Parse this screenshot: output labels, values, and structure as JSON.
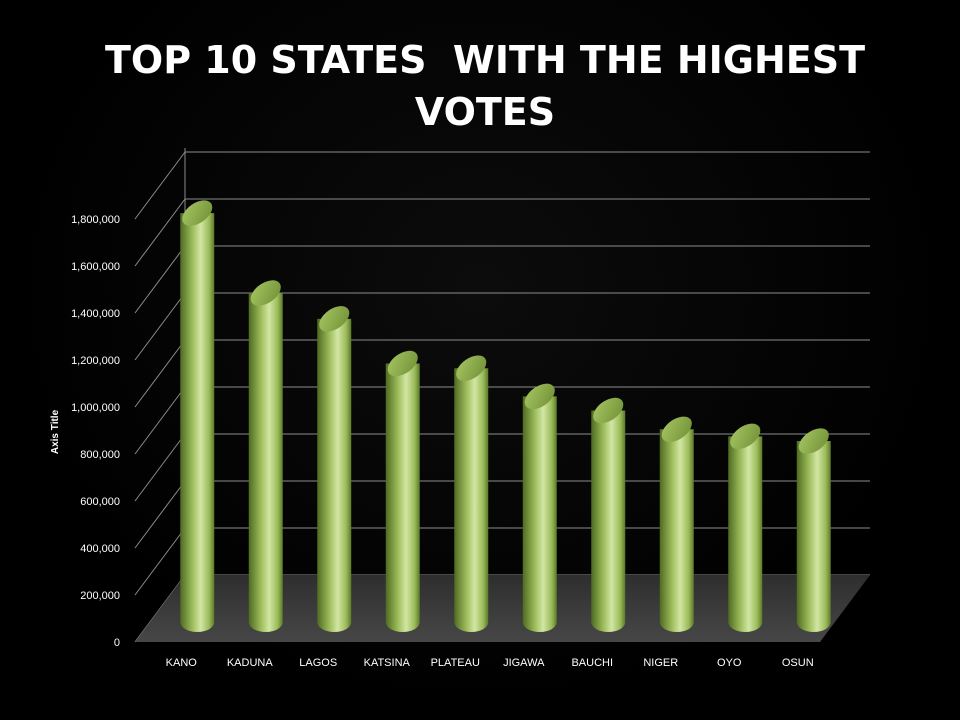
{
  "chart_data": {
    "type": "bar",
    "style": "3d-cylinder",
    "title": "TOP 10 STATES  WITH THE HIGHEST VOTES",
    "ylabel": "Axis Title",
    "xlabel": "",
    "categories": [
      "KANO",
      "KADUNA",
      "LAGOS",
      "KATSINA",
      "PLATEAU",
      "JIGAWA",
      "BAUCHI",
      "NIGER",
      "OYO",
      "OSUN"
    ],
    "values": [
      1740000,
      1400000,
      1290000,
      1100000,
      1080000,
      960000,
      900000,
      820000,
      790000,
      770000
    ],
    "ylim": [
      0,
      1800000
    ],
    "yticks": [
      0,
      200000,
      400000,
      600000,
      800000,
      1000000,
      1200000,
      1400000,
      1600000,
      1800000
    ],
    "ytick_labels": [
      "0",
      "200,000",
      "400,000",
      "600,000",
      "800,000",
      "1,000,000",
      "1,200,000",
      "1,400,000",
      "1,600,000",
      "1,800,000"
    ],
    "grid": true,
    "legend": "none",
    "colors": {
      "bar": "#9bbb59",
      "bar_light": "#d2e6a4",
      "bar_dark": "#4f6a22",
      "floor": "#3a3a3a",
      "grid": "#8c8c8c",
      "background": "#000000"
    }
  }
}
